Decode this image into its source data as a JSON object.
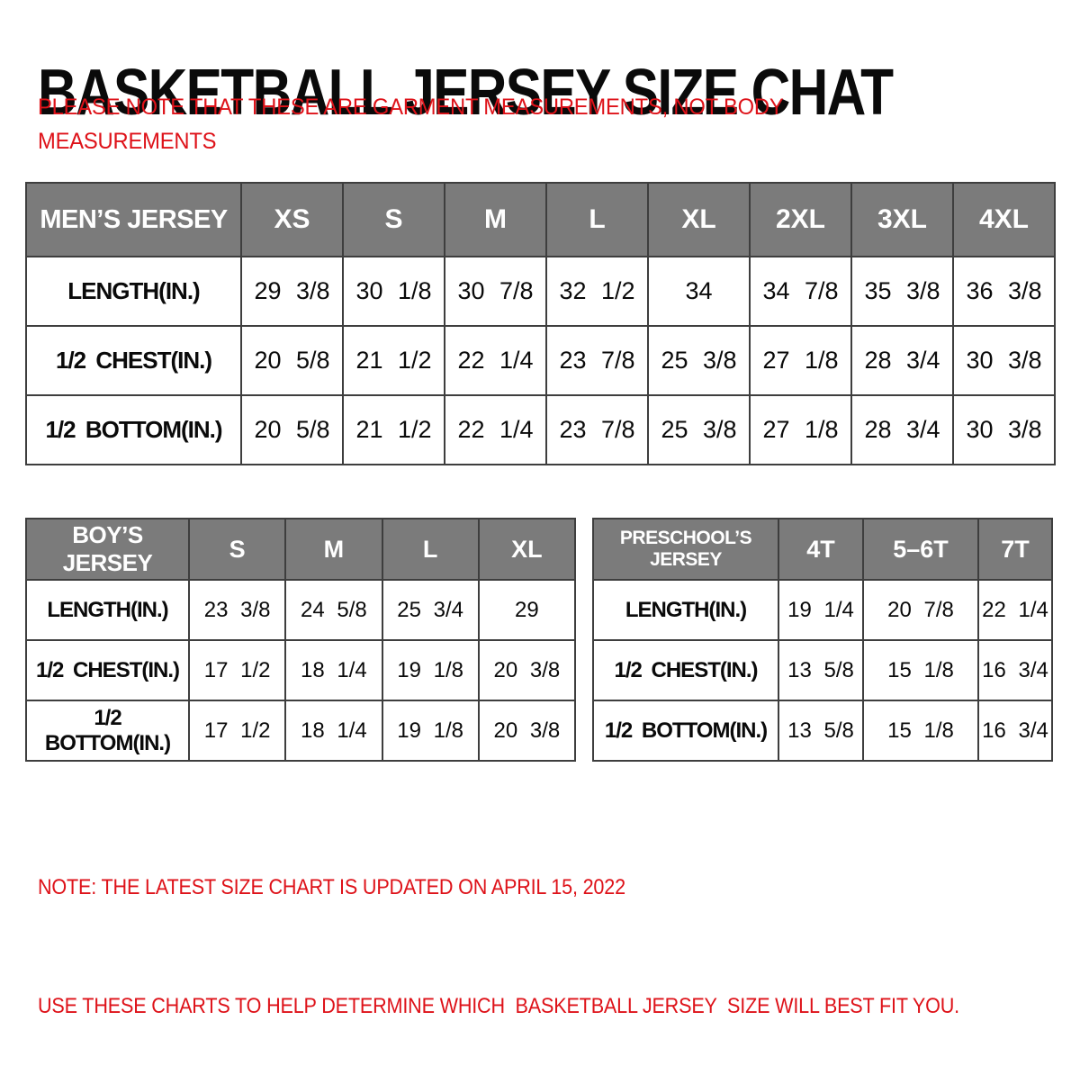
{
  "page": {
    "title": "BASKETBALL JERSEY SIZE CHAT",
    "disclaimer_line1": "PLEASE NOTE THAT THESE ARE GARMENT MEASUREMENTS, NOT BODY",
    "disclaimer_line2": "MEASUREMENTS",
    "note_line1": "NOTE: THE LATEST SIZE CHART IS UPDATED ON APRIL 15, 2022",
    "note_line2": "USE THESE CHARTS TO HELP DETERMINE WHICH  BASKETBALL JERSEY  SIZE WILL BEST FIT YOU."
  },
  "colors": {
    "header_bg": "#7b7b7b",
    "header_text": "#ffffff",
    "accent_red": "#de1219",
    "table_border": "#3e3e3e",
    "body_text": "#0a0a0a"
  },
  "chart_data": [
    {
      "type": "table",
      "id": "mens",
      "title": "MEN’S JERSEY",
      "header": [
        "MEN’S JERSEY",
        "XS",
        "S",
        "M",
        "L",
        "XL",
        "2XL",
        "3XL",
        "4XL"
      ],
      "rows": [
        [
          "LENGTH(IN.)",
          "29 3/8",
          "30 1/8",
          "30 7/8",
          "32 1/2",
          "34",
          "34 7/8",
          "35 3/8",
          "36 3/8"
        ],
        [
          "1/2 CHEST(IN.)",
          "20 5/8",
          "21 1/2",
          "22 1/4",
          "23 7/8",
          "25 3/8",
          "27 1/8",
          "28 3/4",
          "30 3/8"
        ],
        [
          "1/2 BOTTOM(IN.)",
          "20 5/8",
          "21 1/2",
          "22 1/4",
          "23 7/8",
          "25 3/8",
          "27 1/8",
          "28 3/4",
          "30 3/8"
        ]
      ]
    },
    {
      "type": "table",
      "id": "boys",
      "title": "BOY’S JERSEY",
      "header": [
        "BOY’S JERSEY",
        "S",
        "M",
        "L",
        "XL"
      ],
      "rows": [
        [
          "LENGTH(IN.)",
          "23 3/8",
          "24 5/8",
          "25 3/4",
          "29"
        ],
        [
          "1/2 CHEST(IN.)",
          "17 1/2",
          "18 1/4",
          "19 1/8",
          "20 3/8"
        ],
        [
          "1/2 BOTTOM(IN.)",
          "17 1/2",
          "18 1/4",
          "19 1/8",
          "20 3/8"
        ]
      ]
    },
    {
      "type": "table",
      "id": "preschool",
      "title": "PRESCHOOL’S JERSEY",
      "header": [
        "PRESCHOOL’S JERSEY",
        "4T",
        "5–6T",
        "7T"
      ],
      "rows": [
        [
          "LENGTH(IN.)",
          "19 1/4",
          "20 7/8",
          "22 1/4"
        ],
        [
          "1/2 CHEST(IN.)",
          "13 5/8",
          "15 1/8",
          "16 3/4"
        ],
        [
          "1/2 BOTTOM(IN.)",
          "13 5/8",
          "15 1/8",
          "16 3/4"
        ]
      ]
    }
  ]
}
